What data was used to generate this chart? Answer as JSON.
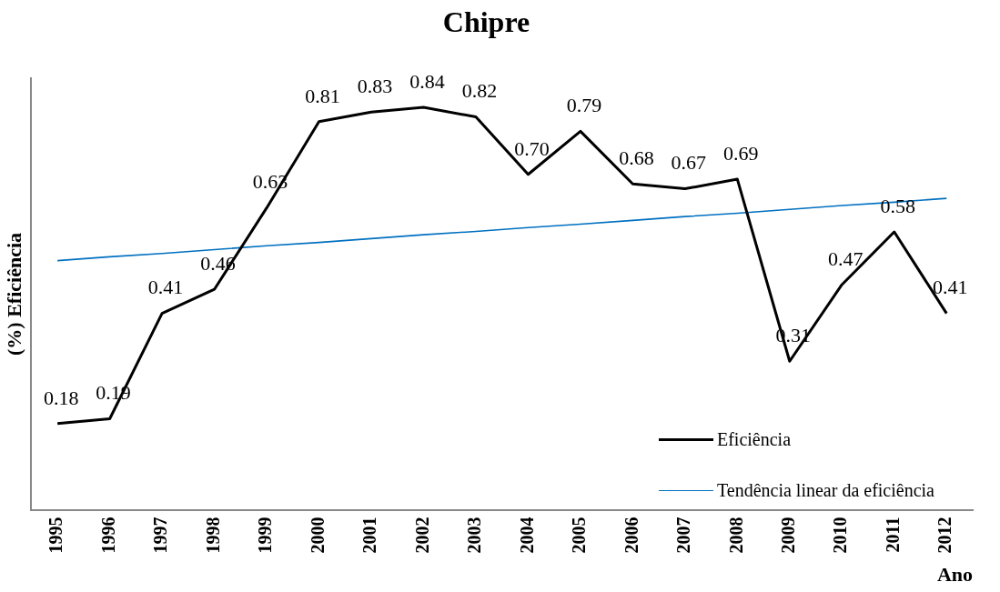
{
  "chart_data": {
    "type": "line",
    "title": "Chipre",
    "xlabel": "Ano",
    "ylabel": "(%) Eficiência",
    "categories": [
      "1995",
      "1996",
      "1997",
      "1998",
      "1999",
      "2000",
      "2001",
      "2002",
      "2003",
      "2004",
      "2005",
      "2006",
      "2007",
      "2008",
      "2009",
      "2010",
      "2011",
      "2012"
    ],
    "ylim": [
      0,
      0.9
    ],
    "tick_labels": "x",
    "grid": false,
    "legend": "bottom right",
    "marker": "none",
    "series": [
      {
        "name": "Eficiência",
        "color": "#000000",
        "values": [
          0.18,
          0.19,
          0.41,
          0.46,
          0.63,
          0.81,
          0.83,
          0.84,
          0.82,
          0.7,
          0.79,
          0.68,
          0.67,
          0.69,
          0.31,
          0.47,
          0.58,
          0.41
        ],
        "value_labels": [
          "0.18",
          "0.19",
          "0.41",
          "0.46",
          "0.63",
          "0.81",
          "0.83",
          "0.84",
          "0.82",
          "0.70",
          "0.79",
          "0.68",
          "0.67",
          "0.69",
          "0.31",
          "0.47",
          "0.58",
          "0.41"
        ]
      },
      {
        "name": "Tendência linear da eficiência",
        "color": "#0070c0",
        "type": "line",
        "values": [
          0.52,
          0.528,
          0.535,
          0.543,
          0.551,
          0.558,
          0.566,
          0.574,
          0.581,
          0.589,
          0.596,
          0.604,
          0.612,
          0.619,
          0.627,
          0.635,
          0.642,
          0.65
        ]
      }
    ]
  }
}
